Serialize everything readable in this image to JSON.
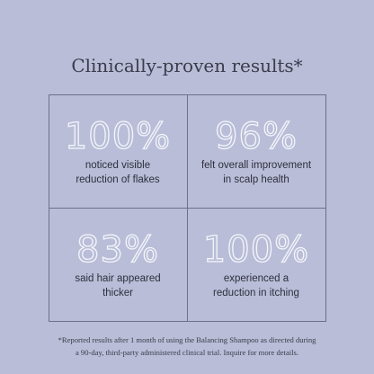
{
  "title": "Clinically-proven results*",
  "stats": [
    {
      "value": "100%",
      "lines": [
        "noticed visible",
        "reduction of flakes"
      ]
    },
    {
      "value": "96%",
      "lines": [
        "felt overall improvement",
        "in scalp health"
      ]
    },
    {
      "value": "83%",
      "lines": [
        "said hair appeared",
        "thicker"
      ]
    },
    {
      "value": "100%",
      "lines": [
        "experienced a",
        "reduction in itching"
      ]
    }
  ],
  "footnote": [
    "*Reported results after 1 month of using the Balancing Shampoo as directed during",
    "a 90-day, third-party administered clinical trial. Inquire for more details."
  ]
}
